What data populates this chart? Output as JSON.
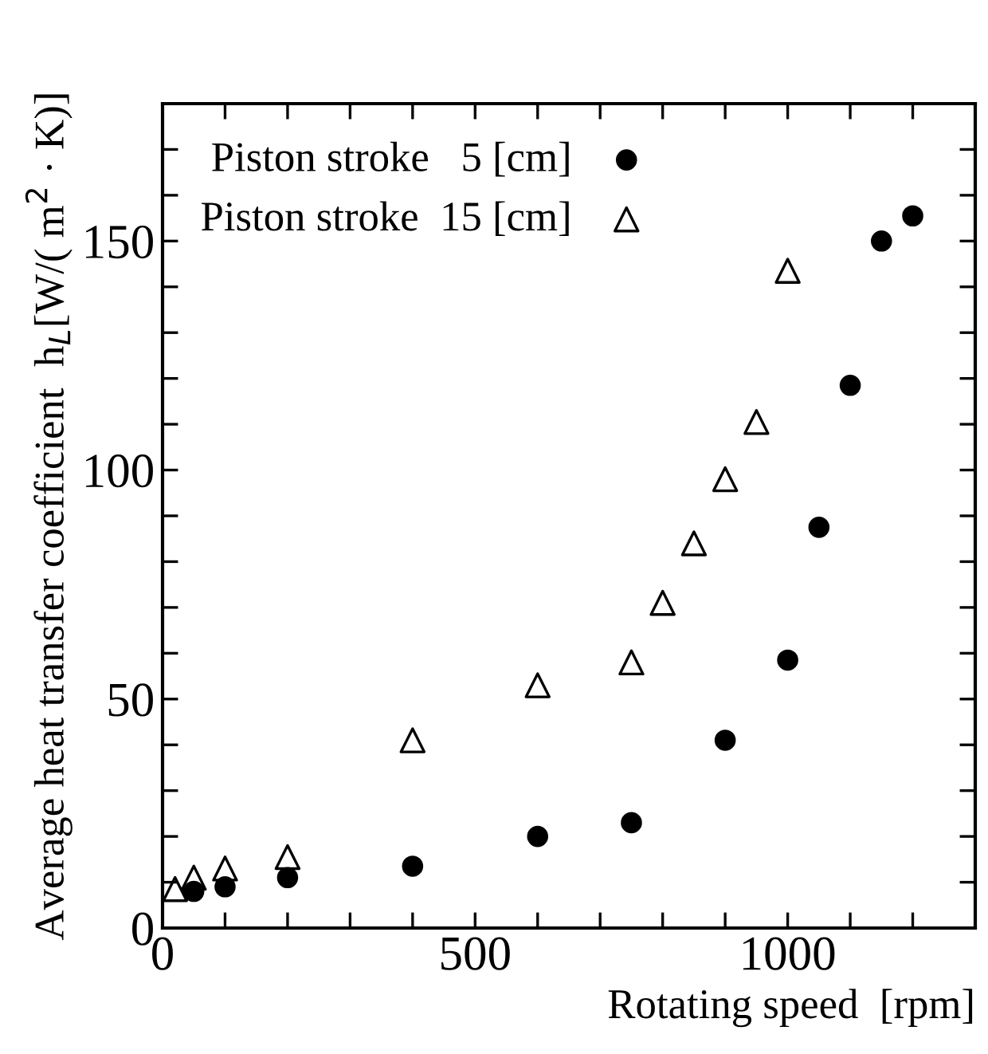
{
  "chart_data": {
    "type": "scatter",
    "xlabel": "Rotating speed  [rpm]",
    "ylabel": "Average heat transfer coefficient  h$_{L}$[W/( m$^{2}$ · K)]",
    "series": [
      {
        "name": "Piston stroke   5 [cm]",
        "color": "#000000",
        "marker": "circle",
        "x": [
          50,
          100,
          200,
          400,
          600,
          750,
          900,
          1000,
          1050,
          1100,
          1150,
          1200
        ],
        "values": [
          8,
          9,
          11,
          13.5,
          20,
          23,
          41,
          58.5,
          87.5,
          118.5,
          150,
          155.5
        ]
      },
      {
        "name": "Piston stroke  15 [cm]",
        "color": "#000000",
        "marker": "triangle",
        "x": [
          20,
          50,
          100,
          200,
          400,
          600,
          750,
          800,
          850,
          900,
          950,
          1000
        ],
        "values": [
          8.5,
          11,
          13,
          15.5,
          41,
          53,
          58,
          71,
          84,
          98,
          110.5,
          143.5
        ]
      }
    ],
    "xlim": [
      0,
      1300
    ],
    "ylim": [
      0,
      180
    ],
    "xticks": [
      0,
      {
        "value": 100,
        "label": null
      },
      {
        "value": 200,
        "label": null
      },
      {
        "value": 300,
        "label": null
      },
      {
        "value": 400,
        "label": null
      },
      500,
      {
        "value": 600,
        "label": null
      },
      {
        "value": 700,
        "label": null
      },
      {
        "value": 800,
        "label": null
      },
      {
        "value": 900,
        "label": null
      },
      1000,
      {
        "value": 1100,
        "label": null
      },
      {
        "value": 1200,
        "label": null
      }
    ],
    "yticks": [
      0,
      {
        "value": 10,
        "label": null
      },
      {
        "value": 20,
        "label": null
      },
      {
        "value": 30,
        "label": null
      },
      {
        "value": 40,
        "label": null
      },
      50,
      {
        "value": 60,
        "label": null
      },
      {
        "value": 70,
        "label": null
      },
      {
        "value": 80,
        "label": null
      },
      {
        "value": 90,
        "label": null
      },
      100,
      {
        "value": 110,
        "label": null
      },
      {
        "value": 120,
        "label": null
      },
      {
        "value": 130,
        "label": null
      },
      {
        "value": 140,
        "label": null
      },
      150,
      {
        "value": 160,
        "label": null
      },
      {
        "value": 170,
        "label": null
      }
    ],
    "grid": false,
    "legend": "top left"
  }
}
